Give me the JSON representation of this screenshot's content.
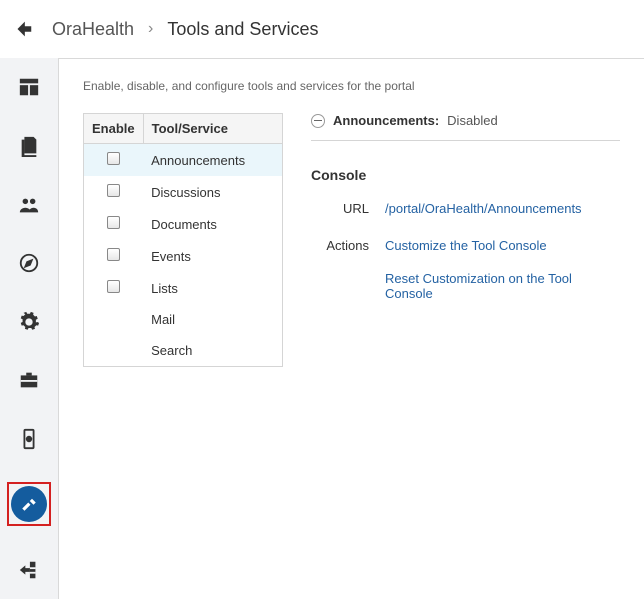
{
  "breadcrumb": {
    "back_aria": "Back",
    "crumb1": "OraHealth",
    "separator": "›",
    "crumb2": "Tools and Services"
  },
  "sidebar": {
    "items": [
      {
        "name": "dashboard"
      },
      {
        "name": "pages"
      },
      {
        "name": "people"
      },
      {
        "name": "explore"
      },
      {
        "name": "settings"
      },
      {
        "name": "assets"
      },
      {
        "name": "device"
      },
      {
        "name": "tools",
        "active": true
      },
      {
        "name": "exit"
      }
    ]
  },
  "main": {
    "description": "Enable, disable, and configure tools and services for the portal",
    "table": {
      "headers": {
        "enable": "Enable",
        "tool": "Tool/Service"
      },
      "rows": [
        {
          "label": "Announcements",
          "hasCheckbox": true,
          "selected": true
        },
        {
          "label": "Discussions",
          "hasCheckbox": true,
          "selected": false
        },
        {
          "label": "Documents",
          "hasCheckbox": true,
          "selected": false
        },
        {
          "label": "Events",
          "hasCheckbox": true,
          "selected": false
        },
        {
          "label": "Lists",
          "hasCheckbox": true,
          "selected": false
        },
        {
          "label": "Mail",
          "hasCheckbox": false,
          "selected": false
        },
        {
          "label": "Search",
          "hasCheckbox": false,
          "selected": false
        }
      ]
    },
    "details": {
      "title": "Announcements:",
      "status": "Disabled",
      "console_heading": "Console",
      "url_label": "URL",
      "url_value": "/portal/OraHealth/Announcements",
      "actions_label": "Actions",
      "action_links": [
        "Customize the Tool Console",
        "Reset Customization on the Tool Console"
      ]
    }
  },
  "colors": {
    "link": "#2462a3",
    "active_circle": "#145c9e",
    "active_border": "#d42020",
    "selected_row": "#eaf6fb"
  }
}
